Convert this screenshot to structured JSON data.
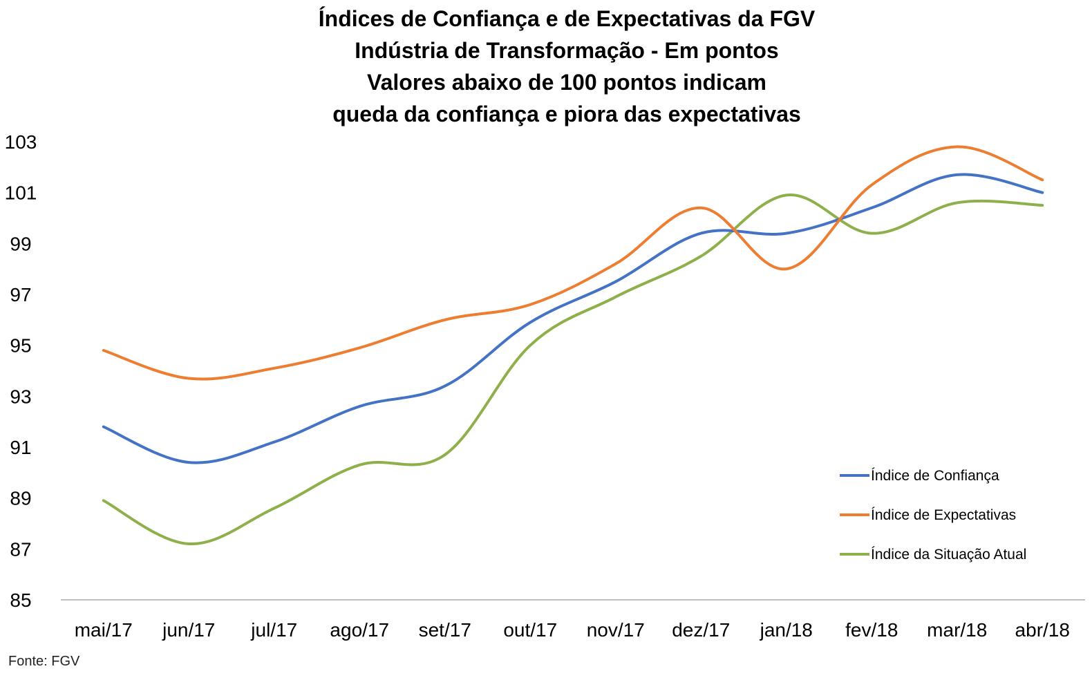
{
  "chart_data": {
    "type": "line",
    "title": [
      "Índices de Confiança e de Expectativas da FGV",
      "Indústria de Transformação - Em pontos",
      "Valores abaixo de 100 pontos indicam",
      "queda da confiança e piora das expectativas"
    ],
    "categories": [
      "mai/17",
      "jun/17",
      "jul/17",
      "ago/17",
      "set/17",
      "out/17",
      "nov/17",
      "dez/17",
      "jan/18",
      "fev/18",
      "mar/18",
      "abr/18"
    ],
    "yticks": [
      "103",
      "101",
      "99",
      "97",
      "95",
      "93",
      "91",
      "89",
      "87",
      "85"
    ],
    "ylim": [
      85,
      103
    ],
    "grid": false,
    "legend_position": "right",
    "series": [
      {
        "name": "Índice de Confiança",
        "color": "#4472C4",
        "values": [
          91.8,
          90.4,
          91.2,
          92.6,
          93.4,
          95.9,
          97.5,
          99.4,
          99.4,
          100.4,
          101.7,
          101.0
        ]
      },
      {
        "name": "Índice de Expectativas",
        "color": "#ED7D31",
        "values": [
          94.8,
          93.7,
          94.1,
          94.9,
          96.0,
          96.6,
          98.2,
          100.4,
          98.0,
          101.3,
          102.8,
          101.5
        ]
      },
      {
        "name": "Índice da Situação Atual",
        "color": "#8EB04A",
        "values": [
          88.9,
          87.2,
          88.6,
          90.3,
          90.7,
          95.0,
          96.9,
          98.5,
          100.9,
          99.4,
          100.6,
          100.5
        ]
      }
    ]
  },
  "source": "Fonte: FGV"
}
